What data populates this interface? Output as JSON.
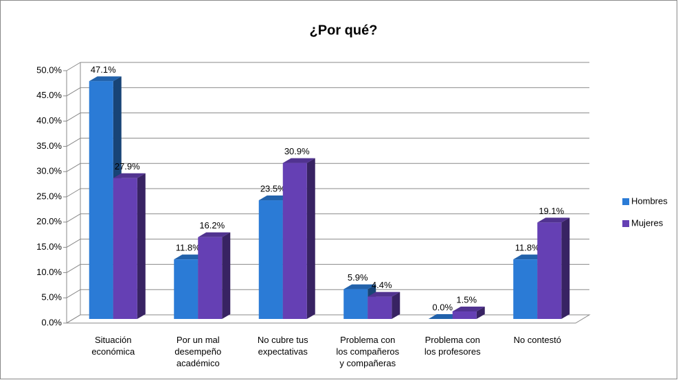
{
  "chart_data": {
    "type": "bar3d",
    "title": "¿Por qué?",
    "categories": [
      "Situación económica",
      "Por un mal desempeño académico",
      "No cubre tus expectativas",
      "Problema con los compañeros y compañeras",
      "Problema con los profesores",
      "No contestó"
    ],
    "series": [
      {
        "name": "Hombres",
        "color": "#2b7bd6",
        "values": [
          47.1,
          11.8,
          23.5,
          5.9,
          0.0,
          11.8
        ],
        "value_labels": [
          "47.1%",
          "11.8%",
          "23.5%",
          "5.9%",
          "0.0%",
          "11.8%"
        ]
      },
      {
        "name": "Mujeres",
        "color": "#6540b4",
        "values": [
          27.9,
          16.2,
          30.9,
          4.4,
          1.5,
          19.1
        ],
        "value_labels": [
          "27.9%",
          "16.2%",
          "30.9%",
          "4.4%",
          "1.5%",
          "19.1%"
        ]
      }
    ],
    "ylim": [
      0,
      50
    ],
    "yticks": [
      {
        "value": 0,
        "label": "0.0%"
      },
      {
        "value": 5,
        "label": "5.0%"
      },
      {
        "value": 10,
        "label": "10.0%"
      },
      {
        "value": 15,
        "label": "15.0%"
      },
      {
        "value": 20,
        "label": "20.0%"
      },
      {
        "value": 25,
        "label": "25.0%"
      },
      {
        "value": 30,
        "label": "30.0%"
      },
      {
        "value": 35,
        "label": "35.0%"
      },
      {
        "value": 40,
        "label": "40.0%"
      },
      {
        "value": 45,
        "label": "45.0%"
      },
      {
        "value": 50,
        "label": "50.0%"
      }
    ],
    "grid": true,
    "legend": "right"
  }
}
